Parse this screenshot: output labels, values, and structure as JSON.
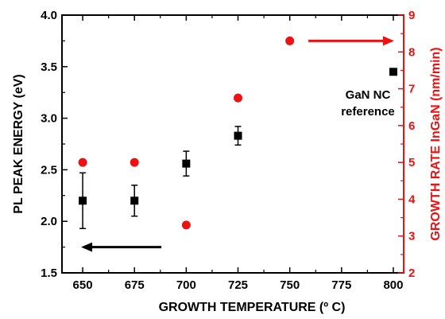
{
  "chart_data": {
    "type": "scatter",
    "xlabel": "GROWTH TEMPERATURE (º C)",
    "ylabel_left": "PL PEAK ENERGY (eV)",
    "ylabel_right": "GROWTH RATE InGaN (nm/min)",
    "xlim": [
      640,
      805
    ],
    "ylim_left": [
      1.5,
      4.0
    ],
    "ylim_right": [
      2,
      9
    ],
    "x_ticks": [
      650,
      675,
      700,
      725,
      750,
      775,
      800
    ],
    "y_ticks_left": [
      "1.5",
      "2.0",
      "2.5",
      "3.0",
      "3.5",
      "4.0"
    ],
    "y_ticks_right": [
      "2",
      "3",
      "4",
      "5",
      "6",
      "7",
      "8",
      "9"
    ],
    "grid": false,
    "colors": {
      "left_axis": "#000000",
      "right_axis": "#ee1111"
    },
    "series": [
      {
        "axis": "left",
        "marker": "square",
        "color": "#000000",
        "x": [
          650,
          675,
          700,
          725,
          800
        ],
        "y": [
          2.2,
          2.2,
          2.56,
          2.83,
          3.45
        ],
        "yerr": [
          0.27,
          0.15,
          0.12,
          0.09,
          null
        ]
      },
      {
        "axis": "right",
        "marker": "circle",
        "color": "#ee1111",
        "x": [
          650,
          675,
          700,
          725,
          750
        ],
        "y": [
          5.0,
          5.0,
          3.3,
          6.75,
          8.3
        ]
      }
    ],
    "annotations": {
      "reference_line1": "GaN NC",
      "reference_line2": "reference"
    }
  }
}
